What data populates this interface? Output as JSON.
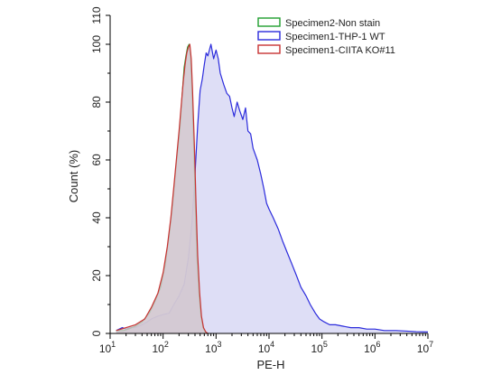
{
  "chart_data": {
    "type": "area",
    "xlabel": "PE-H",
    "ylabel": "Count  (%)",
    "x_scale": "log",
    "xlim": [
      10,
      10000000
    ],
    "ylim": [
      0,
      110
    ],
    "x_ticks": [
      {
        "value": 10,
        "base": "10",
        "exp": "1"
      },
      {
        "value": 100,
        "base": "10",
        "exp": "2"
      },
      {
        "value": 1000,
        "base": "10",
        "exp": "3"
      },
      {
        "value": 10000,
        "base": "10",
        "exp": "4"
      },
      {
        "value": 100000,
        "base": "10",
        "exp": "5"
      },
      {
        "value": 1000000,
        "base": "10",
        "exp": "6"
      },
      {
        "value": 10000000,
        "base": "10",
        "exp": "7"
      }
    ],
    "y_ticks": [
      "0",
      "20",
      "40",
      "60",
      "80",
      "100",
      "110"
    ],
    "grid": false,
    "legend_position": "top-right",
    "series": [
      {
        "name": "Specimen2-Non stain",
        "line_color": "#1e9e2e",
        "fill_color": "#c8c8d2",
        "fill_opacity": 0.75,
        "points": [
          [
            13,
            1
          ],
          [
            18,
            1
          ],
          [
            22,
            1.5
          ],
          [
            30,
            2.5
          ],
          [
            40,
            4
          ],
          [
            55,
            7
          ],
          [
            70,
            11
          ],
          [
            90,
            16
          ],
          [
            110,
            24
          ],
          [
            130,
            34
          ],
          [
            150,
            44
          ],
          [
            170,
            55
          ],
          [
            190,
            64
          ],
          [
            210,
            72
          ],
          [
            230,
            83
          ],
          [
            250,
            92
          ],
          [
            270,
            96
          ],
          [
            290,
            99
          ],
          [
            310,
            100
          ],
          [
            330,
            96
          ],
          [
            350,
            85
          ],
          [
            380,
            64
          ],
          [
            410,
            42
          ],
          [
            440,
            25
          ],
          [
            480,
            13
          ],
          [
            520,
            6
          ],
          [
            570,
            2
          ],
          [
            620,
            0.5
          ],
          [
            700,
            0
          ]
        ]
      },
      {
        "name": "Specimen1-THP-1 WT",
        "line_color": "#2b2bdc",
        "fill_color": "#dadaf5",
        "fill_opacity": 0.9,
        "points": [
          [
            13,
            1
          ],
          [
            17,
            2
          ],
          [
            20,
            1.5
          ],
          [
            25,
            2
          ],
          [
            30,
            2
          ],
          [
            40,
            3
          ],
          [
            50,
            4
          ],
          [
            60,
            5
          ],
          [
            80,
            6
          ],
          [
            100,
            6.5
          ],
          [
            130,
            7
          ],
          [
            160,
            10
          ],
          [
            200,
            13
          ],
          [
            250,
            17
          ],
          [
            300,
            26
          ],
          [
            350,
            38
          ],
          [
            400,
            55
          ],
          [
            450,
            72
          ],
          [
            500,
            84
          ],
          [
            550,
            88
          ],
          [
            600,
            93
          ],
          [
            650,
            97
          ],
          [
            700,
            96
          ],
          [
            800,
            100
          ],
          [
            900,
            95
          ],
          [
            1000,
            98
          ],
          [
            1100,
            95
          ],
          [
            1200,
            90
          ],
          [
            1400,
            86
          ],
          [
            1600,
            83
          ],
          [
            1800,
            82
          ],
          [
            2000,
            78
          ],
          [
            2200,
            75
          ],
          [
            2500,
            80
          ],
          [
            2800,
            77
          ],
          [
            3200,
            74
          ],
          [
            3600,
            78
          ],
          [
            4000,
            70
          ],
          [
            4500,
            69
          ],
          [
            5000,
            64
          ],
          [
            6000,
            60
          ],
          [
            7000,
            55
          ],
          [
            8000,
            50
          ],
          [
            9000,
            45
          ],
          [
            10000,
            43
          ],
          [
            12000,
            40
          ],
          [
            15000,
            36
          ],
          [
            18000,
            32
          ],
          [
            22000,
            28
          ],
          [
            27000,
            24
          ],
          [
            33000,
            20
          ],
          [
            40000,
            16
          ],
          [
            50000,
            13
          ],
          [
            60000,
            10
          ],
          [
            75000,
            7
          ],
          [
            90000,
            5
          ],
          [
            110000,
            4
          ],
          [
            140000,
            3
          ],
          [
            180000,
            3
          ],
          [
            250000,
            2.5
          ],
          [
            350000,
            2
          ],
          [
            500000,
            2
          ],
          [
            700000,
            1.5
          ],
          [
            1000000,
            1.5
          ],
          [
            1500000,
            1
          ],
          [
            2500000,
            1
          ],
          [
            4000000,
            0.8
          ],
          [
            6000000,
            0.6
          ],
          [
            10000000,
            0.5
          ]
        ]
      },
      {
        "name": "Specimen1-CIITA KO#11",
        "line_color": "#c83232",
        "fill_color": "#d6c9d2",
        "fill_opacity": 0.8,
        "points": [
          [
            13,
            1
          ],
          [
            20,
            2
          ],
          [
            30,
            3
          ],
          [
            45,
            5
          ],
          [
            60,
            9
          ],
          [
            80,
            14
          ],
          [
            100,
            21
          ],
          [
            120,
            30
          ],
          [
            140,
            40
          ],
          [
            160,
            51
          ],
          [
            180,
            61
          ],
          [
            200,
            70
          ],
          [
            220,
            79
          ],
          [
            240,
            87
          ],
          [
            260,
            93
          ],
          [
            280,
            97
          ],
          [
            300,
            99
          ],
          [
            320,
            100
          ],
          [
            340,
            95
          ],
          [
            360,
            84
          ],
          [
            390,
            65
          ],
          [
            420,
            44
          ],
          [
            450,
            27
          ],
          [
            490,
            14
          ],
          [
            530,
            6
          ],
          [
            580,
            2
          ],
          [
            640,
            0.5
          ],
          [
            700,
            0
          ]
        ]
      }
    ]
  }
}
